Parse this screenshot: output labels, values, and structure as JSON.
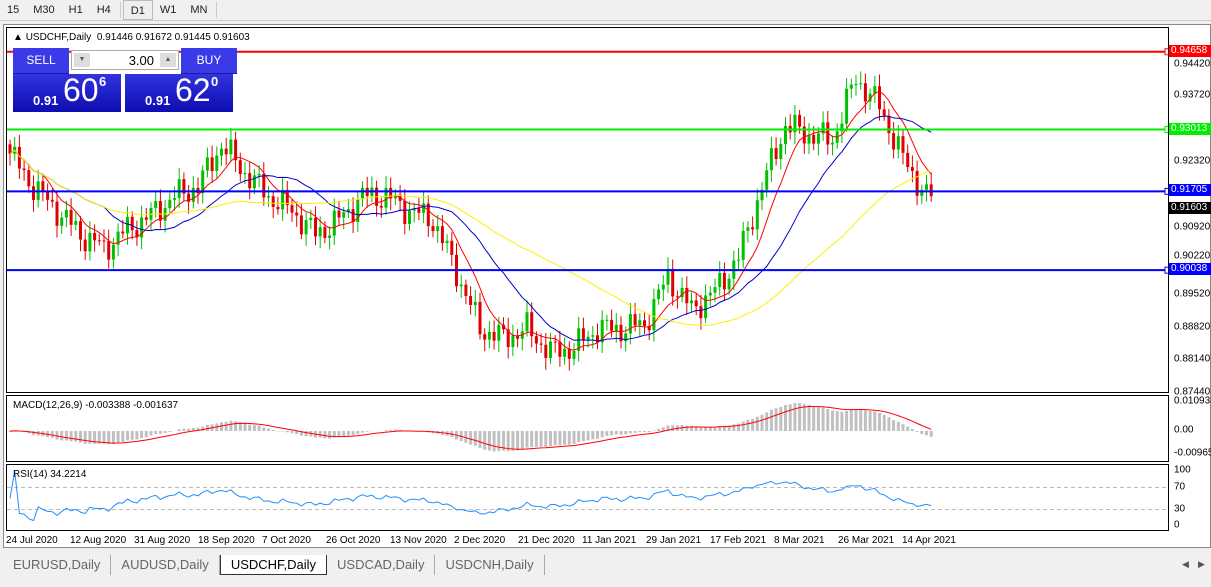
{
  "timeframes": [
    "15",
    "M30",
    "H1",
    "H4",
    "D1",
    "W1",
    "MN"
  ],
  "active_timeframe": "D1",
  "chart": {
    "symbol": "USDCHF,Daily",
    "ohlc": "0.91446 0.91672 0.91445 0.91603",
    "collapse_icon": "triangle-up-icon"
  },
  "one_click": {
    "sell": "SELL",
    "buy": "BUY",
    "lot": "3.00",
    "sell_prefix": "0.91",
    "sell_big": "60",
    "sell_pip": "6",
    "buy_prefix": "0.91",
    "buy_big": "62",
    "buy_pip": "0"
  },
  "price_axis": [
    "0.94420",
    "0.93720",
    "0.92320",
    "0.90920",
    "0.90220",
    "0.89520",
    "0.88820",
    "0.88140",
    "0.87440"
  ],
  "hlines": [
    {
      "price": "0.94658",
      "color": "#ff0000"
    },
    {
      "price": "0.93013",
      "color": "#00ee00"
    },
    {
      "price": "0.91705",
      "color": "#0000ff"
    },
    {
      "price": "0.90038",
      "color": "#0000ff"
    }
  ],
  "current_price_tag": "0.91603",
  "closes_weekly": [
    0.925,
    0.918,
    0.913,
    0.908,
    0.905,
    0.909,
    0.912,
    0.916,
    0.918,
    0.927,
    0.921,
    0.916,
    0.913,
    0.908,
    0.911,
    0.916,
    0.916,
    0.913,
    0.911,
    0.9,
    0.888,
    0.886,
    0.888,
    0.883,
    0.884,
    0.888,
    0.888,
    0.889,
    0.899,
    0.892,
    0.896,
    0.903,
    0.918,
    0.931,
    0.929,
    0.928,
    0.941,
    0.935,
    0.924,
    0.916,
    0.91603
  ],
  "colors": {
    "bull": "#00c000",
    "bear": "#e00000",
    "ma_fast": "#ff0000",
    "ma_mid": "#0000cc",
    "ma_slow": "#ffee00",
    "macd_hist": "#c0c0c0",
    "macd_signal": "#ff0000",
    "rsi": "#1e90ff"
  },
  "macd": {
    "label": "MACD(12,26,9) -0.003388 -0.001637",
    "axis": [
      "0.010933",
      "0.00",
      "-0.009653"
    ]
  },
  "rsi": {
    "label": "RSI(14) 34.2214",
    "axis": [
      "100",
      "70",
      "30",
      "0"
    ]
  },
  "dates": [
    "24 Jul 2020",
    "12 Aug 2020",
    "31 Aug 2020",
    "18 Sep 2020",
    "7 Oct 2020",
    "26 Oct 2020",
    "13 Nov 2020",
    "2 Dec 2020",
    "21 Dec 2020",
    "11 Jan 2021",
    "29 Jan 2021",
    "17 Feb 2021",
    "8 Mar 2021",
    "26 Mar 2021",
    "14 Apr 2021"
  ],
  "tabs": [
    "EURUSD,Daily",
    "AUDUSD,Daily",
    "USDCHF,Daily",
    "USDCAD,Daily",
    "USDCNH,Daily"
  ],
  "active_tab": "USDCHF,Daily"
}
